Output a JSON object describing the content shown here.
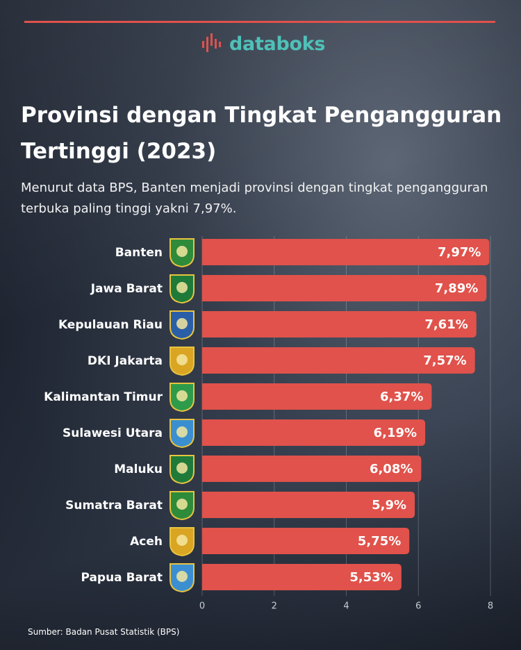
{
  "brand": "databoks",
  "source": "Sumber: Badan Pusat Statistik (BPS)",
  "chart_data": {
    "type": "bar",
    "orientation": "horizontal",
    "title": "Provinsi dengan Tingkat Pengangguran Tertinggi (2023)",
    "subtitle": "Menurut data BPS, Banten menjadi provinsi dengan tingkat pengangguran terbuka paling tinggi yakni 7,97%.",
    "categories": [
      "Banten",
      "Jawa Barat",
      "Kepulauan Riau",
      "DKI Jakarta",
      "Kalimantan Timur",
      "Sulawesi Utara",
      "Maluku",
      "Sumatra Barat",
      "Aceh",
      "Papua Barat"
    ],
    "values": [
      7.97,
      7.89,
      7.61,
      7.57,
      6.37,
      6.19,
      6.08,
      5.9,
      5.75,
      5.53
    ],
    "value_labels": [
      "7,97%",
      "7,89%",
      "7,61%",
      "7,57%",
      "6,37%",
      "6,19%",
      "6,08%",
      "5,9%",
      "5,75%",
      "5,53%"
    ],
    "color": "#e0524b",
    "xlim": [
      0,
      8
    ],
    "xticks": [
      0,
      2,
      4,
      6,
      8
    ],
    "grid": true
  }
}
